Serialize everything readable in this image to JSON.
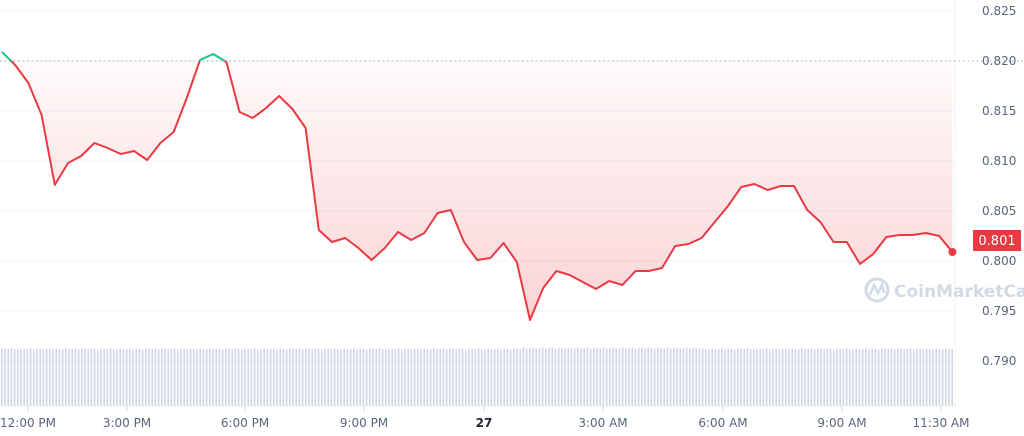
{
  "chart_data": {
    "type": "area",
    "title": "",
    "xlabel": "",
    "ylabel": "",
    "ylim": [
      0.786,
      0.826
    ],
    "y_ticks": [
      "0.825",
      "0.820",
      "0.815",
      "0.810",
      "0.805",
      "0.800",
      "0.795",
      "0.790"
    ],
    "x_ticks": [
      "12:00 PM",
      "3:00 PM",
      "6:00 PM",
      "9:00 PM",
      "27",
      "3:00 AM",
      "6:00 AM",
      "9:00 AM",
      "11:30 AM"
    ],
    "grid": true,
    "reference_price": 0.82,
    "last_price_label": "0.801",
    "colors": {
      "up": "#16c784",
      "down": "#ea3943",
      "volume": "#cfd6e4",
      "grid": "#eff2f5",
      "reference": "#a6b0c3"
    },
    "series": [
      {
        "x": [
          "11:20 AM",
          "11:40 AM",
          "12:00 PM",
          "12:20 PM",
          "12:40 PM",
          "1:00 PM",
          "1:20 PM",
          "1:40 PM",
          "2:00 PM",
          "2:20 PM",
          "2:40 PM",
          "3:00 PM",
          "3:20 PM",
          "3:40 PM",
          "4:00 PM",
          "4:20 PM",
          "4:40 PM",
          "5:00 PM",
          "5:20 PM",
          "5:40 PM",
          "6:00 PM",
          "6:20 PM",
          "6:40 PM",
          "7:00 PM",
          "7:20 PM",
          "7:40 PM",
          "8:00 PM",
          "8:20 PM",
          "8:40 PM",
          "9:00 PM",
          "9:20 PM",
          "9:40 PM",
          "10:00 PM",
          "10:20 PM",
          "10:40 PM",
          "11:00 PM",
          "11:20 PM",
          "11:40 PM",
          "12:00 AM",
          "12:20 AM",
          "12:40 AM",
          "1:00 AM",
          "1:20 AM",
          "1:40 AM",
          "2:00 AM",
          "2:20 AM",
          "2:40 AM",
          "3:00 AM",
          "3:20 AM",
          "3:40 AM",
          "4:00 AM",
          "4:20 AM",
          "4:40 AM",
          "5:00 AM",
          "5:20 AM",
          "5:40 AM",
          "6:00 AM",
          "6:20 AM",
          "6:40 AM",
          "7:00 AM",
          "7:20 AM",
          "7:40 AM",
          "8:00 AM",
          "8:20 AM",
          "8:40 AM",
          "9:00 AM",
          "9:20 AM",
          "9:40 AM",
          "10:00 AM",
          "10:20 AM",
          "10:40 AM",
          "11:00 AM",
          "11:20 AM"
        ],
        "price": [
          0.8209,
          0.8196,
          0.8178,
          0.8146,
          0.8076,
          0.8098,
          0.8105,
          0.8118,
          0.8113,
          0.8107,
          0.811,
          0.8101,
          0.8118,
          0.8129,
          0.8163,
          0.8201,
          0.8207,
          0.8199,
          0.8149,
          0.8143,
          0.8153,
          0.8165,
          0.8152,
          0.8133,
          0.8031,
          0.8019,
          0.8023,
          0.8013,
          0.8001,
          0.8013,
          0.8029,
          0.8021,
          0.8028,
          0.8048,
          0.8051,
          0.8019,
          0.8001,
          0.8003,
          0.8018,
          0.7999,
          0.7941,
          0.7973,
          0.799,
          0.7986,
          0.7979,
          0.7972,
          0.798,
          0.7976,
          0.799,
          0.799,
          0.7993,
          0.8015,
          0.8017,
          0.8023,
          0.8039,
          0.8055,
          0.8074,
          0.8077,
          0.8071,
          0.8075,
          0.8075,
          0.8051,
          0.8039,
          0.8019,
          0.8019,
          0.7997,
          0.8007,
          0.8024,
          0.8026,
          0.8026,
          0.8028,
          0.8025,
          0.8009
        ]
      }
    ],
    "volume_relative": "uniform, near-constant"
  },
  "watermark": "CoinMarketCap"
}
